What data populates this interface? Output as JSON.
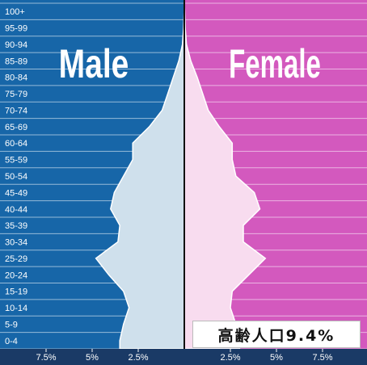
{
  "chart_data": {
    "type": "population-pyramid",
    "colors": {
      "male_background": "#1766a8",
      "female_background": "#d359be",
      "male_fill": "#cfe0ec",
      "female_fill": "#f8dcef",
      "outline": "#ffffff",
      "axis_band": "#1a3a66"
    },
    "age_groups": [
      "0-4",
      "5-9",
      "10-14",
      "15-19",
      "20-24",
      "25-29",
      "30-34",
      "35-39",
      "40-44",
      "45-49",
      "50-54",
      "55-59",
      "60-64",
      "65-69",
      "70-74",
      "75-79",
      "80-84",
      "85-89",
      "90-94",
      "95-99",
      "100+"
    ],
    "series": [
      {
        "name": "Male",
        "values": [
          3.5,
          3.3,
          3.0,
          3.3,
          4.1,
          4.8,
          3.6,
          3.5,
          4.0,
          3.8,
          3.3,
          2.8,
          2.8,
          1.9,
          1.2,
          0.9,
          0.6,
          0.3,
          0.1,
          0.04,
          0.01
        ]
      },
      {
        "name": "Female",
        "values": [
          3.0,
          2.8,
          2.5,
          2.6,
          3.5,
          4.4,
          3.2,
          3.2,
          4.1,
          3.8,
          2.8,
          2.6,
          2.6,
          1.9,
          1.3,
          1.0,
          0.7,
          0.35,
          0.12,
          0.05,
          0.02
        ]
      }
    ],
    "xlim": [
      0,
      9.5
    ],
    "x_ticks": [
      "7.5%",
      "5%",
      "2.5%",
      "2.5%",
      "5%",
      "7.5%"
    ],
    "x_tick_values": [
      -7.5,
      -5,
      -2.5,
      2.5,
      5,
      7.5
    ]
  },
  "aging_text": "高齢人口9.4%"
}
